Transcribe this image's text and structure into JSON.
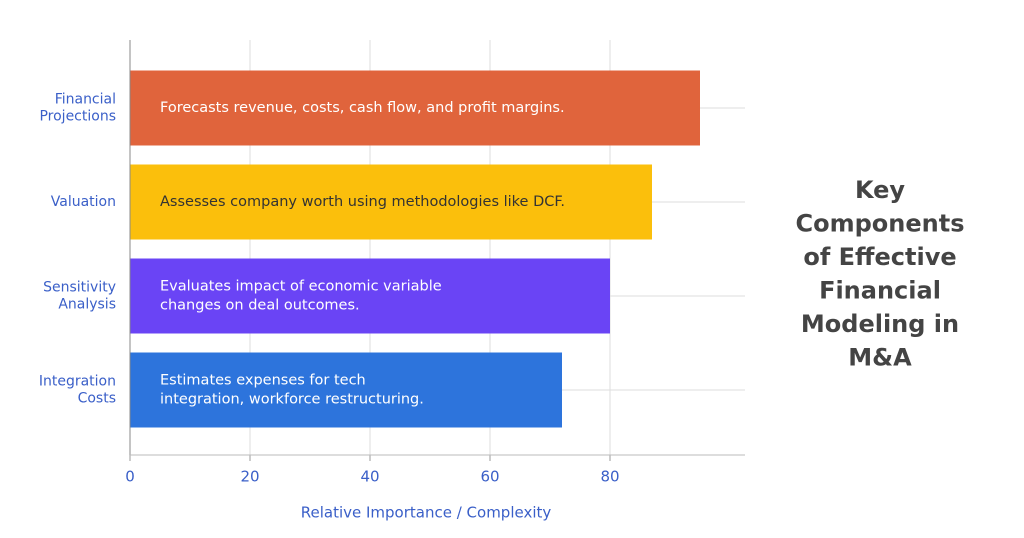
{
  "chart_data": {
    "type": "barh",
    "title": [
      "Key",
      "Components",
      "of Effective",
      "Financial",
      "Modeling in",
      "M&A"
    ],
    "categories": [
      [
        "Financial",
        "Projections"
      ],
      [
        "Valuation"
      ],
      [
        "Sensitivity",
        "Analysis"
      ],
      [
        "Integration",
        "Costs"
      ]
    ],
    "values": [
      95,
      87,
      80,
      72
    ],
    "colors": [
      "#e0643c",
      "#fbbf0c",
      "#6a44f5",
      "#2d74dc"
    ],
    "annotations": [
      [
        "Forecasts revenue, costs, cash flow, and profit margins."
      ],
      [
        "Assesses company worth using methodologies like DCF."
      ],
      [
        "Evaluates impact of economic variable",
        "changes on deal outcomes."
      ],
      [
        "Estimates expenses for tech",
        "integration, workforce restructuring."
      ]
    ],
    "x_label": "Relative Importance / Complexity",
    "xlim": [
      0,
      102.5
    ],
    "xticks": [
      0,
      20,
      40,
      60,
      80
    ],
    "grid": true
  }
}
